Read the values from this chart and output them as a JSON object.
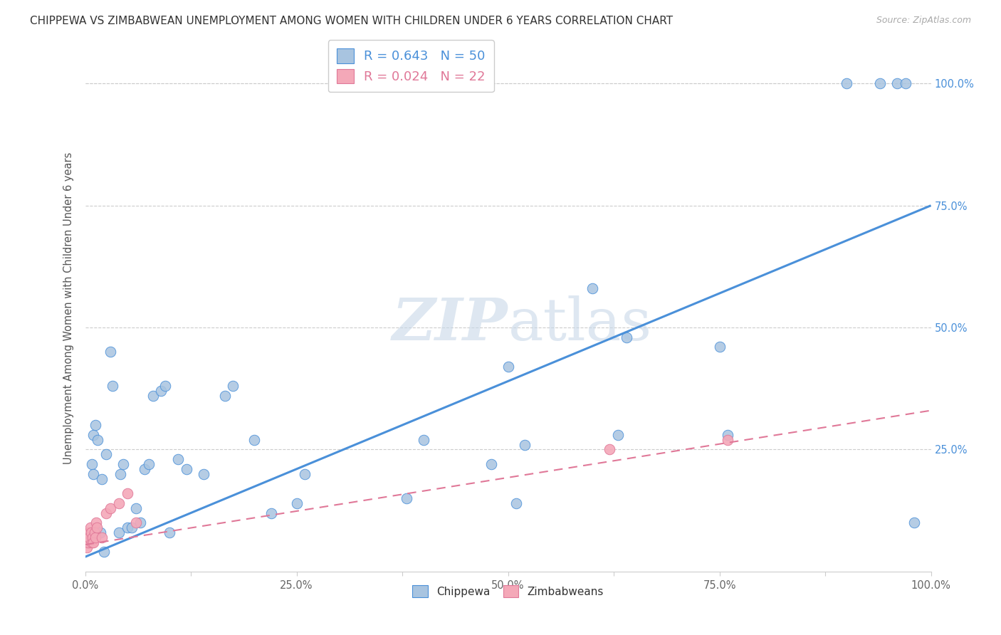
{
  "title": "CHIPPEWA VS ZIMBABWEAN UNEMPLOYMENT AMONG WOMEN WITH CHILDREN UNDER 6 YEARS CORRELATION CHART",
  "source": "Source: ZipAtlas.com",
  "ylabel": "Unemployment Among Women with Children Under 6 years",
  "xlabel_chippewa": "Chippewa",
  "xlabel_zimbabweans": "Zimbabweans",
  "legend_chippewa": "R = 0.643   N = 50",
  "legend_zimbabweans": "R = 0.024   N = 22",
  "chippewa_color": "#a8c4e0",
  "zimbabweans_color": "#f4a8b8",
  "trend_chippewa_color": "#4a90d9",
  "trend_zimbabweans_color": "#e07898",
  "watermark_color": "#c8d8e8",
  "xlim": [
    0.0,
    1.0
  ],
  "ylim": [
    0.0,
    1.08
  ],
  "xtick_labels": [
    "0.0%",
    "",
    "25.0%",
    "",
    "50.0%",
    "",
    "75.0%",
    "",
    "100.0%"
  ],
  "xtick_vals": [
    0.0,
    0.125,
    0.25,
    0.375,
    0.5,
    0.625,
    0.75,
    0.875,
    1.0
  ],
  "ytick_vals": [
    0.25,
    0.5,
    0.75,
    1.0
  ],
  "ytick_labels": [
    "25.0%",
    "50.0%",
    "75.0%",
    "100.0%"
  ],
  "chippewa_x": [
    0.005,
    0.008,
    0.01,
    0.01,
    0.012,
    0.015,
    0.018,
    0.02,
    0.022,
    0.025,
    0.03,
    0.032,
    0.04,
    0.042,
    0.045,
    0.05,
    0.055,
    0.06,
    0.065,
    0.07,
    0.075,
    0.08,
    0.09,
    0.095,
    0.1,
    0.11,
    0.12,
    0.14,
    0.165,
    0.175,
    0.2,
    0.22,
    0.25,
    0.26,
    0.38,
    0.4,
    0.48,
    0.5,
    0.51,
    0.52,
    0.6,
    0.63,
    0.64,
    0.75,
    0.76,
    0.9,
    0.94,
    0.96,
    0.97,
    0.98
  ],
  "chippewa_y": [
    0.06,
    0.22,
    0.28,
    0.2,
    0.3,
    0.27,
    0.08,
    0.19,
    0.04,
    0.24,
    0.45,
    0.38,
    0.08,
    0.2,
    0.22,
    0.09,
    0.09,
    0.13,
    0.1,
    0.21,
    0.22,
    0.36,
    0.37,
    0.38,
    0.08,
    0.23,
    0.21,
    0.2,
    0.36,
    0.38,
    0.27,
    0.12,
    0.14,
    0.2,
    0.15,
    0.27,
    0.22,
    0.42,
    0.14,
    0.26,
    0.58,
    0.28,
    0.48,
    0.46,
    0.28,
    1.0,
    1.0,
    1.0,
    1.0,
    0.1
  ],
  "zimbabweans_x": [
    0.001,
    0.002,
    0.003,
    0.004,
    0.005,
    0.006,
    0.007,
    0.008,
    0.009,
    0.01,
    0.011,
    0.012,
    0.013,
    0.014,
    0.02,
    0.025,
    0.03,
    0.04,
    0.05,
    0.06,
    0.62,
    0.76
  ],
  "zimbabweans_y": [
    0.06,
    0.05,
    0.08,
    0.06,
    0.07,
    0.09,
    0.08,
    0.06,
    0.07,
    0.06,
    0.08,
    0.07,
    0.1,
    0.09,
    0.07,
    0.12,
    0.13,
    0.14,
    0.16,
    0.1,
    0.25,
    0.27
  ],
  "trend_chippewa_x0": 0.0,
  "trend_chippewa_y0": 0.03,
  "trend_chippewa_x1": 1.0,
  "trend_chippewa_y1": 0.75,
  "trend_zimbabweans_x0": 0.0,
  "trend_zimbabweans_y0": 0.055,
  "trend_zimbabweans_x1": 1.0,
  "trend_zimbabweans_y1": 0.33
}
